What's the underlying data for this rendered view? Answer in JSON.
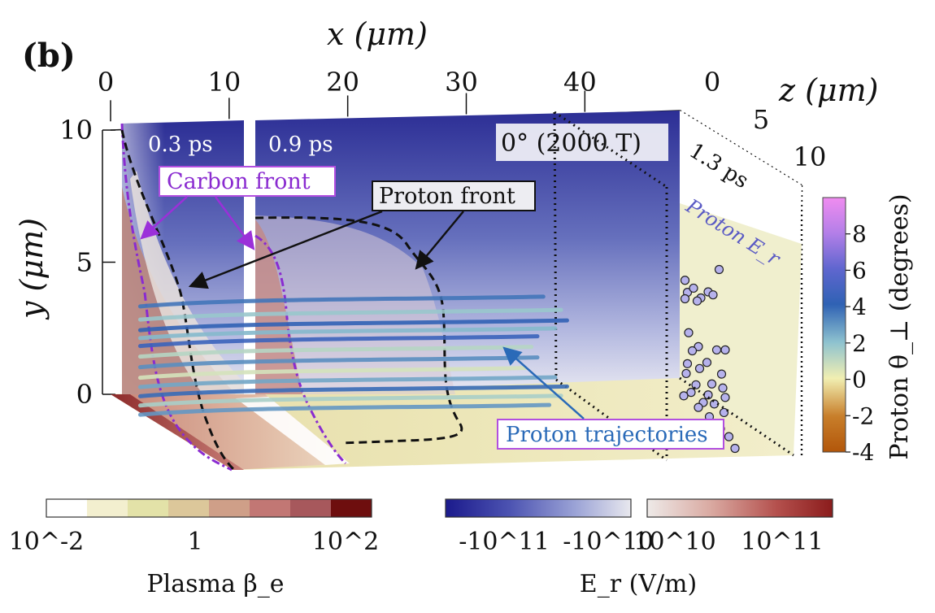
{
  "chart_data": {
    "type": "3d-field-plot",
    "panel_label": "(b)",
    "axes": {
      "x": {
        "label": "x (μm)",
        "range": [
          0,
          48
        ],
        "ticks": [
          0,
          10,
          20,
          30,
          40
        ],
        "tick_labels": [
          "0",
          "10",
          "20",
          "30",
          "40"
        ]
      },
      "y": {
        "label": "y (μm)",
        "range": [
          0,
          10
        ],
        "ticks": [
          0,
          5,
          10
        ],
        "tick_labels": [
          "0",
          "5",
          "10"
        ]
      },
      "z": {
        "label": "z (μm)",
        "range": [
          0,
          10
        ],
        "ticks": [
          0,
          5,
          10
        ],
        "tick_labels": [
          "0",
          "5",
          "10"
        ]
      }
    },
    "time_labels": [
      "0.3 ps",
      "0.9 ps",
      "1.3 ps"
    ],
    "field_label": "0° (2000 T)",
    "annotations": [
      "Carbon front",
      "Proton front",
      "Proton trajectories",
      "Proton E_r"
    ],
    "colorbars": [
      {
        "name": "plasma-beta",
        "label": "Plasma β_e",
        "scale": "log",
        "tick_labels": [
          "10^-2",
          "1",
          "10^2"
        ],
        "colors": [
          "#ffffff",
          "#f3efcf",
          "#e3e2a8",
          "#dcc79a",
          "#cf9f88",
          "#c27774",
          "#a7585c",
          "#6e0e0e"
        ]
      },
      {
        "name": "er-negative",
        "label": "E_r (V/m)",
        "tick_labels": [
          "-10^11",
          "-10^10"
        ],
        "colors": [
          "#1b1a8c",
          "#4d54b2",
          "#9ba3d6",
          "#e8e8ee"
        ]
      },
      {
        "name": "er-positive",
        "tick_labels": [
          "10^10",
          "10^11"
        ],
        "colors": [
          "#eeeae8",
          "#d9a8a0",
          "#b4504d",
          "#8b1c1c"
        ]
      },
      {
        "name": "proton-theta",
        "label": "Proton θ_⊥ (degrees)",
        "range": [
          -4,
          10
        ],
        "tick_labels": [
          "8",
          "6",
          "4",
          "2",
          "0",
          "-2",
          "-4"
        ],
        "colors": [
          "#f08cf0",
          "#7c70d8",
          "#2f62b4",
          "#8fc3cf",
          "#f1efb2",
          "#c87e2a",
          "#b2560a"
        ]
      }
    ],
    "trajectories": [
      {
        "y": 3.45,
        "x_end": 36.5,
        "theta": 3.6
      },
      {
        "y": 2.95,
        "x_end": 38.0,
        "theta": 1.8
      },
      {
        "y": 2.55,
        "x_end": 38.5,
        "theta": 4.1
      },
      {
        "y": 2.25,
        "x_end": 37.5,
        "theta": 2.2
      },
      {
        "y": 1.95,
        "x_end": 36.0,
        "theta": 4.5
      },
      {
        "y": 1.55,
        "x_end": 35.5,
        "theta": 1.2
      },
      {
        "y": 1.15,
        "x_end": 36.0,
        "theta": 3.1
      },
      {
        "y": 0.75,
        "x_end": 35.0,
        "theta": 0.6
      },
      {
        "y": 0.4,
        "x_end": 37.5,
        "theta": 2.6
      },
      {
        "y": 0.05,
        "x_end": 38.5,
        "theta": 3.8
      },
      {
        "y": -0.3,
        "x_end": 38.0,
        "theta": 1.5
      },
      {
        "y": -0.65,
        "x_end": 37.0,
        "theta": 2.9
      }
    ],
    "proton_dots": [
      [
        0.3,
        4.4
      ],
      [
        0.5,
        4.0
      ],
      [
        1.0,
        4.3
      ],
      [
        1.6,
        4.1
      ],
      [
        2.2,
        4.5
      ],
      [
        3.1,
        5.6
      ],
      [
        0.3,
        3.7
      ],
      [
        1.3,
        3.9
      ],
      [
        2.6,
        4.5
      ],
      [
        0.6,
        2.5
      ],
      [
        1.4,
        2.2
      ],
      [
        2.9,
        2.5
      ],
      [
        3.6,
        2.7
      ],
      [
        0.9,
        1.9
      ],
      [
        2.1,
        1.8
      ],
      [
        3.3,
        1.7
      ],
      [
        0.5,
        1.3
      ],
      [
        1.5,
        1.4
      ],
      [
        2.5,
        1.1
      ],
      [
        3.4,
        1.2
      ],
      [
        0.4,
        0.9
      ],
      [
        1.2,
        0.7
      ],
      [
        2.2,
        0.6
      ],
      [
        3.6,
        0.9
      ],
      [
        0.8,
        0.3
      ],
      [
        1.8,
        0.2
      ],
      [
        2.7,
        0.4
      ],
      [
        3.5,
        0.3
      ],
      [
        0.2,
        0.0
      ],
      [
        1.4,
        -0.1
      ],
      [
        2.3,
        -0.2
      ],
      [
        3.2,
        -0.4
      ],
      [
        3.9,
        -0.5
      ],
      [
        4.4,
        -0.8
      ]
    ]
  }
}
